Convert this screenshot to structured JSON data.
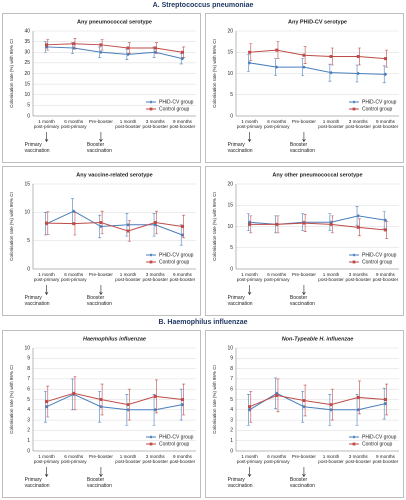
{
  "sections": [
    "A. Streptococcus pneumoniae",
    "B. Haemophilus influenzae"
  ],
  "chart_data": [
    {
      "type": "line",
      "title": "Any pneumococcal serotype",
      "y_label": "Colonisation rate (%) with 95% CI",
      "categories": [
        "1 month post-primary",
        "6 months post-primary",
        "Pre-booster",
        "1 month post-booster",
        "3 months post-booster",
        "9 months post-booster"
      ],
      "series": [
        {
          "name": "PHiD-CV group",
          "color": "#4a7ebb",
          "values": [
            32.5,
            32,
            30,
            29,
            30,
            27
          ],
          "errors": [
            2.5,
            2.5,
            2.5,
            2.5,
            2.5,
            2.5
          ]
        },
        {
          "name": "Control group",
          "color": "#be4b48",
          "values": [
            33.5,
            34,
            33.5,
            32,
            32,
            30
          ],
          "errors": [
            2.5,
            2.5,
            2.5,
            2.5,
            2.5,
            2.5
          ]
        }
      ],
      "ylim": [
        0,
        40
      ],
      "yticks": [
        0,
        5,
        10,
        15,
        20,
        25,
        30,
        35,
        40
      ],
      "grid": true,
      "legend": "lower right",
      "annotations": [
        "Primary vaccination",
        "Booster vaccination"
      ]
    },
    {
      "type": "line",
      "title": "Any PHiD-CV serotype",
      "y_label": "Colonisation rate (%) with 95% CI",
      "categories": [
        "1 month post-primary",
        "6 months post-primary",
        "Pre-booster",
        "1 month post-booster",
        "3 months post-booster",
        "9 months post-booster"
      ],
      "series": [
        {
          "name": "PHiD-CV group",
          "color": "#4a7ebb",
          "values": [
            12.5,
            11.5,
            11.5,
            10.2,
            10,
            9.8
          ],
          "errors": [
            2,
            2,
            2,
            2,
            2,
            2
          ]
        },
        {
          "name": "Control group",
          "color": "#be4b48",
          "values": [
            15,
            15.5,
            14.3,
            14,
            14,
            13.5
          ],
          "errors": [
            2,
            2,
            2,
            2,
            2,
            2
          ]
        }
      ],
      "ylim": [
        0,
        20
      ],
      "yticks": [
        0,
        5,
        10,
        15,
        20
      ],
      "grid": true,
      "legend": "lower right",
      "annotations": [
        "Primary vaccination",
        "Booster vaccination"
      ]
    },
    {
      "type": "line",
      "title": "Any vaccine-related serotype",
      "y_label": "Colonisation rate (%) with 95% CI",
      "categories": [
        "1 month post-primary",
        "6 months post-primary",
        "Pre-booster",
        "1 month post-booster",
        "3 months post-booster",
        "9 months post-booster"
      ],
      "series": [
        {
          "name": "PHiD-CV group",
          "color": "#4a7ebb",
          "values": [
            8,
            10.2,
            7.5,
            7.8,
            7.8,
            6
          ],
          "errors": [
            2,
            2.2,
            2,
            2,
            2,
            1.8
          ]
        },
        {
          "name": "Control group",
          "color": "#be4b48",
          "values": [
            8.1,
            8,
            8.2,
            6.7,
            8.2,
            7.5
          ],
          "errors": [
            2,
            2,
            2,
            1.8,
            2,
            2
          ]
        }
      ],
      "ylim": [
        0,
        15
      ],
      "yticks": [
        0,
        5,
        10,
        15
      ],
      "grid": true,
      "legend": "lower right",
      "annotations": [
        "Primary vaccination",
        "Booster vaccination"
      ]
    },
    {
      "type": "line",
      "title": "Any other pneumococcal serotype",
      "y_label": "Colonisation rate (%) with 95% CI",
      "categories": [
        "1 month post-primary",
        "6 months post-primary",
        "Pre-booster",
        "1 month post-booster",
        "3 months post-booster",
        "9 months post-booster"
      ],
      "series": [
        {
          "name": "PHiD-CV group",
          "color": "#4a7ebb",
          "values": [
            11,
            10.5,
            11,
            11,
            12.5,
            11.5
          ],
          "errors": [
            2,
            2,
            2,
            2,
            2.2,
            2
          ]
        },
        {
          "name": "Control group",
          "color": "#be4b48",
          "values": [
            10.5,
            10.5,
            10.8,
            10.5,
            9.8,
            9.2
          ],
          "errors": [
            2,
            2,
            2,
            2,
            2,
            2
          ]
        }
      ],
      "ylim": [
        0,
        20
      ],
      "yticks": [
        0,
        5,
        10,
        15,
        20
      ],
      "grid": true,
      "legend": "lower right",
      "annotations": [
        "Primary vaccination",
        "Booster vaccination"
      ]
    },
    {
      "type": "line",
      "title": "Haemophilus influenzae",
      "y_label": "Colonisation rate (%) with 95% CI",
      "categories": [
        "1 month post-primary",
        "6 months post-primary",
        "Pre-booster",
        "1 month post-booster",
        "3 months post-booster",
        "9 months post-booster"
      ],
      "series": [
        {
          "name": "PHiD-CV group",
          "color": "#4a7ebb",
          "values": [
            4.3,
            5.5,
            4.3,
            4,
            4,
            4.5
          ],
          "errors": [
            1.5,
            1.5,
            1.5,
            1.5,
            1.5,
            1.5
          ]
        },
        {
          "name": "Control group",
          "color": "#be4b48",
          "values": [
            4.8,
            5.6,
            5,
            4.5,
            5.3,
            5
          ],
          "errors": [
            1.5,
            1.6,
            1.5,
            1.5,
            1.6,
            1.5
          ]
        }
      ],
      "ylim": [
        0,
        10
      ],
      "yticks": [
        0,
        1,
        2,
        3,
        4,
        5,
        6,
        7,
        8,
        9,
        10
      ],
      "grid": true,
      "legend": "lower right",
      "annotations": [
        "Primary vaccination",
        "Booster vaccination"
      ]
    },
    {
      "type": "line",
      "title": "Non-Typeable H. influenzae",
      "y_label": "Colonisation rate (%) with 95% CI",
      "categories": [
        "1 month post-primary",
        "6 months post-primary",
        "Pre-booster",
        "1 month post-booster",
        "3 months post-booster",
        "9 months post-booster"
      ],
      "series": [
        {
          "name": "PHiD-CV group",
          "color": "#4a7ebb",
          "values": [
            4,
            5.6,
            4.3,
            4,
            4,
            4.6
          ],
          "errors": [
            1.5,
            1.5,
            1.5,
            1.5,
            1.5,
            1.5
          ]
        },
        {
          "name": "Control group",
          "color": "#be4b48",
          "values": [
            4.3,
            5.4,
            4.9,
            4.5,
            5.2,
            5
          ],
          "errors": [
            1.5,
            1.6,
            1.5,
            1.5,
            1.6,
            1.5
          ]
        }
      ],
      "ylim": [
        0,
        10
      ],
      "yticks": [
        0,
        1,
        2,
        3,
        4,
        5,
        6,
        7,
        8,
        9,
        10
      ],
      "grid": true,
      "legend": "lower right",
      "annotations": [
        "Primary vaccination",
        "Booster vaccination"
      ]
    }
  ]
}
